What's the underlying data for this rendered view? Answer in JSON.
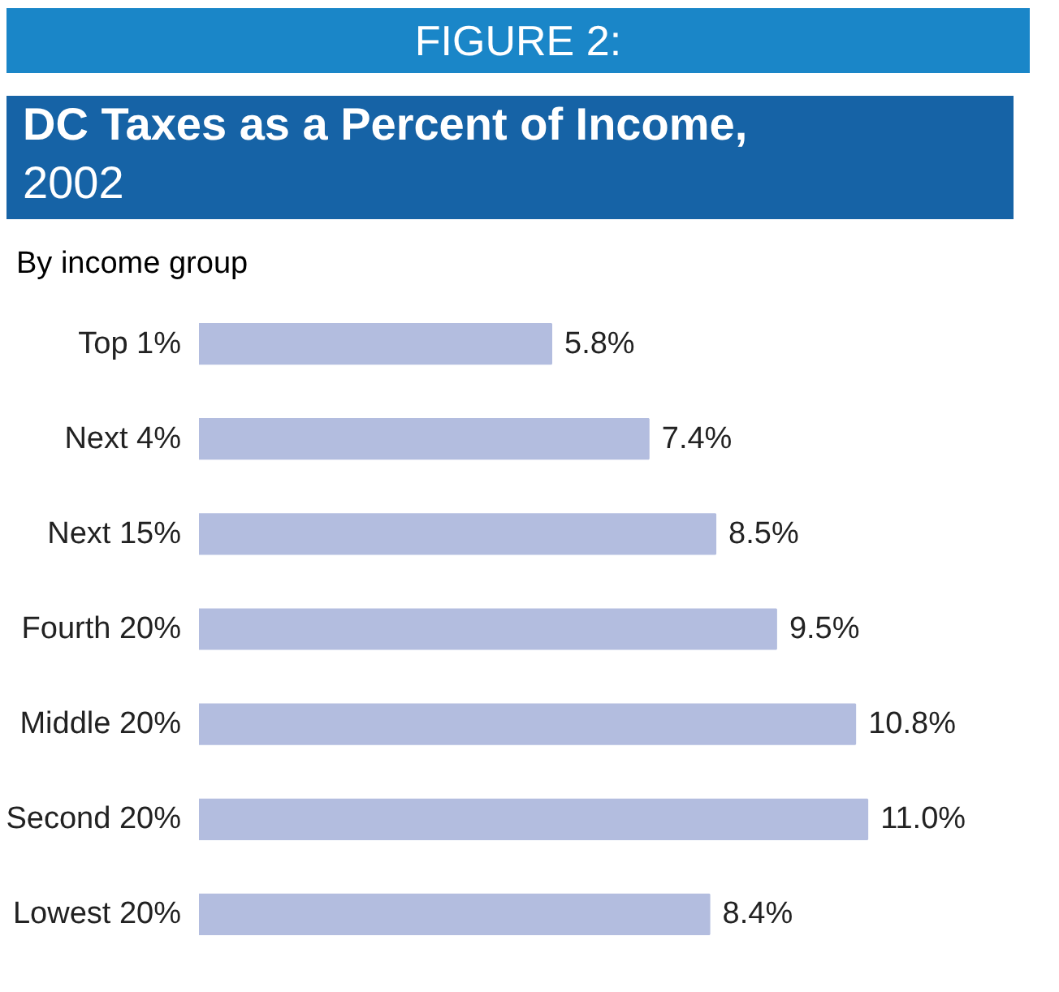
{
  "chart_data": {
    "type": "bar",
    "orientation": "horizontal",
    "annotations": [
      "FIGURE 2:",
      "By income group"
    ],
    "title": "DC Taxes as a Percent of Income,",
    "subtitle": "2002",
    "categories": [
      "Top 1%",
      "Next 4%",
      "Next 15%",
      "Fourth 20%",
      "Middle 20%",
      "Second 20%",
      "Lowest 20%"
    ],
    "values": [
      5.8,
      7.4,
      8.5,
      9.5,
      10.8,
      11.0,
      8.4
    ],
    "value_labels": [
      "5.8%",
      "7.4%",
      "8.5%",
      "9.5%",
      "10.8%",
      "11.0%",
      "8.4%"
    ],
    "color": "#b3bddf",
    "grid": false
  }
}
